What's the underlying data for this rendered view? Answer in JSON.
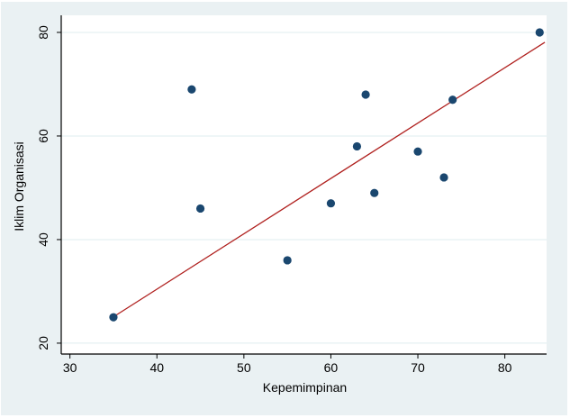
{
  "chart_data": {
    "type": "scatter",
    "title": "",
    "xlabel": "Kepemimpinan",
    "ylabel": "Iklim Organisasi",
    "x_ticks": [
      30,
      40,
      50,
      60,
      70,
      80
    ],
    "y_ticks": [
      20,
      40,
      60,
      80
    ],
    "xlim": [
      29.0,
      84.8
    ],
    "ylim": [
      17.9,
      83.3
    ],
    "grid": "horizontal-only",
    "legend": "none",
    "points": [
      {
        "x": 35,
        "y": 25
      },
      {
        "x": 44,
        "y": 69
      },
      {
        "x": 45,
        "y": 46
      },
      {
        "x": 55,
        "y": 36
      },
      {
        "x": 60,
        "y": 47
      },
      {
        "x": 63,
        "y": 58
      },
      {
        "x": 64,
        "y": 68
      },
      {
        "x": 65,
        "y": 49
      },
      {
        "x": 70,
        "y": 57
      },
      {
        "x": 73,
        "y": 52
      },
      {
        "x": 74,
        "y": 67
      },
      {
        "x": 84,
        "y": 80
      }
    ],
    "fit_line": {
      "x1": 35.3,
      "y1": 25.4,
      "x2": 84.6,
      "y2": 78.1
    },
    "colors": {
      "figure_background": "#eaf1f3",
      "plot_background": "#ffffff",
      "gridline": "#dfecef",
      "marker": "#1a476f",
      "fit_line": "#b0211f",
      "axis": "#000000",
      "text": "#000000"
    }
  }
}
